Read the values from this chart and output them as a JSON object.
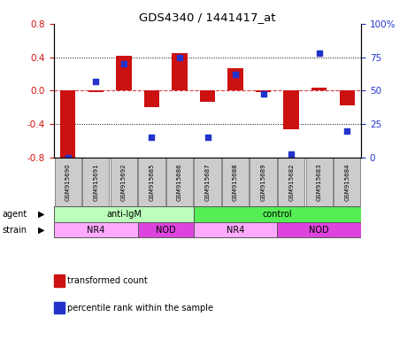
{
  "title": "GDS4340 / 1441417_at",
  "samples": [
    "GSM915690",
    "GSM915691",
    "GSM915692",
    "GSM915685",
    "GSM915686",
    "GSM915687",
    "GSM915688",
    "GSM915689",
    "GSM915682",
    "GSM915683",
    "GSM915684"
  ],
  "bar_values": [
    -0.8,
    -0.02,
    0.42,
    -0.2,
    0.45,
    -0.13,
    0.27,
    -0.02,
    -0.46,
    0.04,
    -0.18
  ],
  "dot_values": [
    0,
    57,
    70,
    15,
    75,
    15,
    62,
    48,
    3,
    78,
    20
  ],
  "bar_color": "#CC1111",
  "dot_color": "#2233CC",
  "ylim_left": [
    -0.8,
    0.8
  ],
  "ylim_right": [
    0,
    100
  ],
  "yticks_left": [
    -0.8,
    -0.4,
    0.0,
    0.4,
    0.8
  ],
  "yticks_right": [
    0,
    25,
    50,
    75,
    100
  ],
  "ytick_labels_right": [
    "0",
    "25",
    "50",
    "75",
    "100%"
  ],
  "agent_groups": [
    {
      "label": "anti-IgM",
      "start": 0,
      "end": 5,
      "color": "#BBFFBB"
    },
    {
      "label": "control",
      "start": 5,
      "end": 11,
      "color": "#55EE55"
    }
  ],
  "strain_groups": [
    {
      "label": "NR4",
      "start": 0,
      "end": 3,
      "color": "#FFAAFF"
    },
    {
      "label": "NOD",
      "start": 3,
      "end": 5,
      "color": "#DD44DD"
    },
    {
      "label": "NR4",
      "start": 5,
      "end": 8,
      "color": "#FFAAFF"
    },
    {
      "label": "NOD",
      "start": 8,
      "end": 11,
      "color": "#DD44DD"
    }
  ],
  "legend_items": [
    {
      "color": "#CC1111",
      "label": "transformed count"
    },
    {
      "color": "#2233CC",
      "label": "percentile rank within the sample"
    }
  ],
  "bar_width": 0.55,
  "background_color": "#FFFFFF",
  "agent_row_label": "agent",
  "strain_row_label": "strain"
}
